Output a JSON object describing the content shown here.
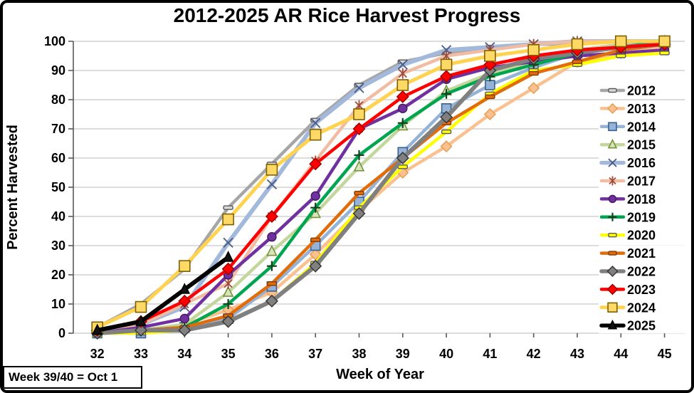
{
  "chart_data": {
    "type": "line",
    "title": "2012-2025 AR Rice Harvest Progress",
    "xlabel": "Week of Year",
    "ylabel": "Percent Harvested",
    "annotation": "Week 39/40 = Oct 1",
    "x": [
      32,
      33,
      34,
      35,
      36,
      37,
      38,
      39,
      40,
      41,
      42,
      43,
      44,
      45
    ],
    "x_tick_labels": [
      "32",
      "33",
      "34",
      "35",
      "36",
      "37",
      "38",
      "39",
      "40",
      "41",
      "42",
      "43",
      "44",
      "45"
    ],
    "y_tick_labels": [
      "0",
      "10",
      "20",
      "30",
      "40",
      "50",
      "60",
      "70",
      "80",
      "90",
      "100"
    ],
    "ylim": [
      0,
      100
    ],
    "grid": true,
    "gridline_color": "#C6C6C6",
    "axis_color": "#595959",
    "legend_position": "upper-right-inside",
    "series": [
      {
        "name": "2012",
        "line_color": "#A6A6A6",
        "line_width": 4.5,
        "marker": "dash",
        "marker_fill": "#D9D9D9",
        "marker_stroke": "#595959",
        "marker_size": 13,
        "values": [
          2,
          10,
          22,
          43,
          58,
          73,
          85,
          93,
          96,
          98,
          99,
          99,
          100,
          100
        ]
      },
      {
        "name": "2013",
        "line_color": "#FAC090",
        "line_width": 4.5,
        "marker": "diamond",
        "marker_fill": "#FAC090",
        "marker_stroke": "#E49C4E",
        "marker_size": 13,
        "values": [
          0,
          1,
          3,
          8,
          14,
          27,
          42,
          55,
          64,
          75,
          84,
          93,
          96,
          98
        ]
      },
      {
        "name": "2014",
        "line_color": "#95B3D7",
        "line_width": 4.5,
        "marker": "square",
        "marker_fill": "#95B3D7",
        "marker_stroke": "#376092",
        "marker_size": 13,
        "values": [
          0,
          0,
          2,
          5,
          16,
          30,
          45,
          62,
          77,
          85,
          91,
          96,
          99,
          100
        ]
      },
      {
        "name": "2015",
        "line_color": "#C3D69B",
        "line_width": 4.5,
        "marker": "triangle",
        "marker_fill": "#D7E4BD",
        "marker_stroke": "#77933C",
        "marker_size": 13,
        "values": [
          0,
          1,
          3,
          14,
          28,
          41,
          57,
          71,
          83,
          89,
          93,
          97,
          99,
          100
        ]
      },
      {
        "name": "2016",
        "line_color": "#A3B9DC",
        "line_width": 6,
        "marker": "x",
        "marker_fill": "none",
        "marker_stroke": "#4A5A84",
        "marker_size": 13,
        "values": [
          1,
          3,
          9,
          31,
          51,
          72,
          84,
          92,
          97,
          98,
          99,
          100,
          100,
          100
        ]
      },
      {
        "name": "2017",
        "line_color": "#F2BCA3",
        "line_width": 4.5,
        "marker": "star",
        "marker_fill": "none",
        "marker_stroke": "#9E4B3C",
        "marker_size": 13,
        "values": [
          1,
          3,
          10,
          17,
          40,
          59,
          78,
          89,
          95,
          97,
          99,
          100,
          100,
          100
        ]
      },
      {
        "name": "2018",
        "line_color": "#7030A0",
        "line_width": 4.5,
        "marker": "circle",
        "marker_fill": "#7030A0",
        "marker_stroke": "#3F1B5B",
        "marker_size": 13,
        "values": [
          0,
          2,
          5,
          20,
          33,
          47,
          70,
          77,
          87,
          91,
          93,
          95,
          96,
          97
        ]
      },
      {
        "name": "2019",
        "line_color": "#00A550",
        "line_width": 4.5,
        "marker": "plus",
        "marker_fill": "none",
        "marker_stroke": "#14421F",
        "marker_size": 14,
        "values": [
          0,
          1,
          2,
          10,
          23,
          43,
          61,
          72,
          82,
          88,
          92,
          96,
          98,
          100
        ]
      },
      {
        "name": "2020",
        "line_color": "#FFFF00",
        "line_width": 4.5,
        "marker": "dash",
        "marker_fill": "#FFFF00",
        "marker_stroke": "#595959",
        "marker_size": 13,
        "values": [
          0,
          0,
          1,
          4,
          11,
          24,
          43,
          57,
          69,
          82,
          90,
          92,
          95,
          96
        ]
      },
      {
        "name": "2021",
        "line_color": "#E36C0A",
        "line_width": 4.5,
        "marker": "dash",
        "marker_fill": "#E36C0A",
        "marker_stroke": "#7F3B08",
        "marker_size": 13,
        "values": [
          0,
          1,
          2,
          6,
          17,
          32,
          48,
          60,
          72,
          81,
          89,
          93,
          97,
          99
        ]
      },
      {
        "name": "2022",
        "line_color": "#808080",
        "line_width": 6,
        "marker": "diamond",
        "marker_fill": "#808080",
        "marker_stroke": "#333333",
        "marker_size": 14,
        "values": [
          0,
          1,
          1,
          4,
          11,
          23,
          41,
          60,
          74,
          90,
          94,
          96,
          98,
          99
        ]
      },
      {
        "name": "2023",
        "line_color": "#FF0000",
        "line_width": 4.5,
        "marker": "diamond",
        "marker_fill": "#FF0000",
        "marker_stroke": "#990000",
        "marker_size": 14,
        "values": [
          1,
          4,
          11,
          22,
          40,
          58,
          70,
          81,
          88,
          92,
          95,
          97,
          98,
          99
        ]
      },
      {
        "name": "2024",
        "line_color": "#FFD34F",
        "line_width": 5,
        "marker": "square",
        "marker_fill": "#FFD966",
        "marker_stroke": "#7F6000",
        "marker_size": 15,
        "values": [
          2,
          9,
          23,
          39,
          56,
          68,
          75,
          85,
          92,
          95,
          97,
          99,
          100,
          100
        ]
      },
      {
        "name": "2025",
        "line_color": "#000000",
        "line_width": 6,
        "marker": "triangle",
        "marker_fill": "#111111",
        "marker_stroke": "#000000",
        "marker_size": 13,
        "values": [
          1,
          4,
          15,
          26,
          null,
          null,
          null,
          null,
          null,
          null,
          null,
          null,
          null,
          null
        ]
      }
    ]
  }
}
